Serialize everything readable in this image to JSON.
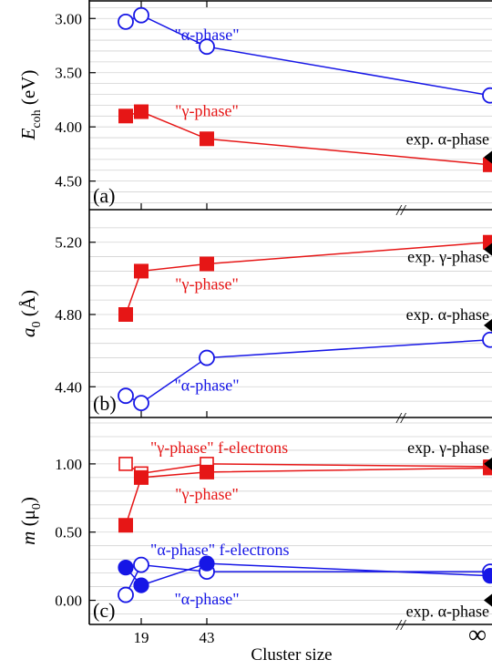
{
  "colors": {
    "alpha": "#1616e6",
    "gamma": "#e61616",
    "exp": "#000000",
    "grid": "#d2d2d2",
    "axis": "#000000"
  },
  "chart_data": [
    {
      "type": "line",
      "panel_label": "(a)",
      "ylabel_main": "E",
      "ylabel_sub": "coh",
      "ylabel_unit": " (eV)",
      "yticks": [
        "3.00",
        "3.50",
        "4.00",
        "4.50"
      ],
      "ytick_values": [
        3.0,
        3.5,
        4.0,
        4.5
      ],
      "ylim": [
        2.88,
        4.73
      ],
      "y_inverted": true,
      "x_axis": "Cluster size (19, 43, ∞)",
      "grid": true,
      "series": [
        {
          "key": "alpha",
          "marker": "open-circle",
          "x": [
            13,
            19,
            43,
            "∞"
          ],
          "values": [
            3.03,
            2.97,
            3.26,
            3.71
          ]
        },
        {
          "key": "gamma",
          "marker": "filled-square",
          "x": [
            13,
            19,
            43,
            "∞"
          ],
          "values": [
            3.9,
            3.86,
            4.11,
            4.35
          ]
        }
      ],
      "annotations": [
        {
          "key": "alpha",
          "text": "\"α-phase\"",
          "at": [
            43,
            3.15
          ]
        },
        {
          "key": "gamma",
          "text": "\"γ-phase\"",
          "at": [
            43,
            3.85
          ]
        },
        {
          "key": "exp",
          "text": "exp. α-phase",
          "at": [
            "∞",
            4.11
          ]
        }
      ],
      "exp_markers": [
        {
          "x": "∞",
          "value": 4.28
        }
      ]
    },
    {
      "type": "line",
      "panel_label": "(b)",
      "ylabel_main": "a",
      "ylabel_sub": "0",
      "ylabel_unit": " (Å)",
      "yticks": [
        "4.40",
        "4.80",
        "5.20"
      ],
      "ytick_values": [
        4.4,
        4.8,
        5.2
      ],
      "ylim": [
        4.25,
        5.35
      ],
      "y_inverted": false,
      "x_axis": "Cluster size (19, 43, ∞)",
      "grid": true,
      "series": [
        {
          "key": "gamma",
          "marker": "filled-square",
          "x": [
            13,
            19,
            43,
            "∞"
          ],
          "values": [
            4.8,
            5.04,
            5.08,
            5.2
          ]
        },
        {
          "key": "alpha",
          "marker": "open-circle",
          "x": [
            13,
            19,
            43,
            "∞"
          ],
          "values": [
            4.35,
            4.31,
            4.56,
            4.66
          ]
        }
      ],
      "annotations": [
        {
          "key": "gamma",
          "text": "\"γ-phase\"",
          "at": [
            43,
            4.97
          ]
        },
        {
          "key": "alpha",
          "text": "\"α-phase\"",
          "at": [
            43,
            4.41
          ]
        },
        {
          "key": "exp",
          "text": "exp. γ-phase",
          "at": [
            "∞",
            5.12
          ]
        },
        {
          "key": "exp",
          "text": "exp. α-phase",
          "at": [
            "∞",
            4.8
          ]
        }
      ],
      "exp_markers": [
        {
          "x": "∞",
          "value": 5.16
        },
        {
          "x": "∞",
          "value": 4.74
        }
      ]
    },
    {
      "type": "line",
      "panel_label": "(c)",
      "ylabel_main": "m",
      "ylabel_sub": "0",
      "ylabel_unit": " (μ",
      "ylabel_close": ")",
      "yticks": [
        "0.00",
        "0.50",
        "1.00"
      ],
      "ytick_values": [
        0.0,
        0.5,
        1.0
      ],
      "ylim": [
        -0.15,
        1.3
      ],
      "y_inverted": false,
      "x_axis": "Cluster size (19, 43, ∞)",
      "grid": true,
      "series": [
        {
          "key": "gamma",
          "marker": "open-square",
          "x": [
            13,
            19,
            43,
            "∞"
          ],
          "values": [
            1.0,
            0.93,
            1.0,
            0.98
          ]
        },
        {
          "key": "gamma",
          "marker": "filled-square",
          "x": [
            13,
            19,
            43,
            "∞"
          ],
          "values": [
            0.55,
            0.9,
            0.94,
            0.97
          ]
        },
        {
          "key": "alpha",
          "marker": "open-circle",
          "x": [
            13,
            19,
            43,
            "∞"
          ],
          "values": [
            0.04,
            0.26,
            0.21,
            0.21
          ]
        },
        {
          "key": "alpha",
          "marker": "filled-circle",
          "x": [
            13,
            19,
            43,
            "∞"
          ],
          "values": [
            0.24,
            0.11,
            0.27,
            0.18
          ]
        }
      ],
      "annotations": [
        {
          "key": "gamma",
          "text": "\"γ-phase\" f-electrons",
          "at": [
            19,
            1.12
          ]
        },
        {
          "key": "gamma",
          "text": "\"γ-phase\"",
          "at": [
            43,
            0.78
          ]
        },
        {
          "key": "alpha",
          "text": "\"α-phase\" f-electrons",
          "at": [
            19,
            0.37
          ]
        },
        {
          "key": "alpha",
          "text": "\"α-phase\"",
          "at": [
            43,
            0.01
          ]
        },
        {
          "key": "exp",
          "text": "exp. γ-phase",
          "at": [
            "∞",
            1.12
          ]
        },
        {
          "key": "exp",
          "text": "exp. α-phase",
          "at": [
            "∞",
            -0.08
          ]
        }
      ],
      "exp_markers": [
        {
          "x": "∞",
          "value": 1.0
        },
        {
          "x": "∞",
          "value": 0.0
        }
      ]
    }
  ],
  "x_axis": {
    "label": "Cluster size",
    "ticks": [
      {
        "value": 19,
        "label": "19"
      },
      {
        "value": 43,
        "label": "43"
      },
      {
        "value": "∞",
        "label": "∞"
      }
    ],
    "break_marker": "//"
  }
}
